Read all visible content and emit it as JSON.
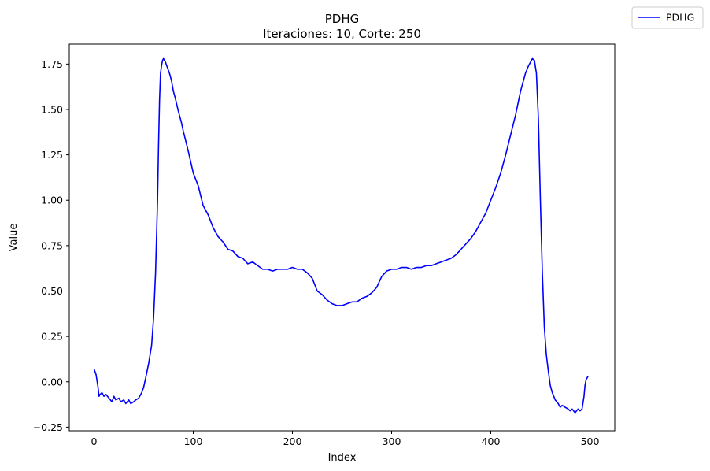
{
  "chart_data": {
    "type": "line",
    "title": "PDHG",
    "subtitle": "Iteraciones: 10, Corte: 250",
    "xlabel": "Index",
    "ylabel": "Value",
    "xlim": [
      -25,
      525
    ],
    "ylim": [
      -0.27,
      1.86
    ],
    "xticks": [
      0,
      100,
      200,
      300,
      400,
      500
    ],
    "yticks": [
      -0.25,
      0.0,
      0.25,
      0.5,
      0.75,
      1.0,
      1.25,
      1.5,
      1.75
    ],
    "xtick_labels": [
      "0",
      "100",
      "200",
      "300",
      "400",
      "500"
    ],
    "ytick_labels": [
      "−0.25",
      "0.00",
      "0.25",
      "0.50",
      "0.75",
      "1.00",
      "1.25",
      "1.50",
      "1.75"
    ],
    "grid": false,
    "legend_position": "upper-right-outside",
    "series": [
      {
        "name": "PDHG",
        "color": "#0000ff",
        "x": [
          0,
          2,
          4,
          5,
          6,
          8,
          10,
          12,
          15,
          18,
          20,
          22,
          25,
          27,
          30,
          32,
          35,
          37,
          40,
          42,
          45,
          48,
          50,
          52,
          55,
          58,
          60,
          62,
          64,
          65,
          66,
          67,
          68,
          69,
          70,
          72,
          74,
          76,
          78,
          80,
          82,
          85,
          88,
          90,
          95,
          100,
          105,
          110,
          115,
          120,
          125,
          130,
          135,
          140,
          145,
          150,
          155,
          160,
          165,
          170,
          175,
          180,
          185,
          190,
          195,
          200,
          205,
          210,
          215,
          220,
          225,
          230,
          235,
          240,
          245,
          250,
          255,
          260,
          265,
          270,
          275,
          280,
          285,
          290,
          295,
          300,
          305,
          310,
          315,
          320,
          325,
          330,
          335,
          340,
          345,
          350,
          355,
          360,
          365,
          370,
          375,
          380,
          385,
          390,
          395,
          400,
          405,
          410,
          415,
          420,
          425,
          430,
          435,
          438,
          440,
          442,
          444,
          446,
          448,
          450,
          452,
          454,
          456,
          458,
          460,
          462,
          465,
          468,
          470,
          472,
          475,
          478,
          480,
          482,
          485,
          488,
          490,
          492,
          494,
          495,
          496,
          497,
          498
        ],
        "y": [
          0.07,
          0.04,
          -0.03,
          -0.08,
          -0.07,
          -0.06,
          -0.08,
          -0.07,
          -0.09,
          -0.11,
          -0.08,
          -0.1,
          -0.09,
          -0.11,
          -0.1,
          -0.12,
          -0.1,
          -0.12,
          -0.11,
          -0.1,
          -0.09,
          -0.06,
          -0.03,
          0.02,
          0.1,
          0.2,
          0.35,
          0.6,
          1.0,
          1.3,
          1.55,
          1.7,
          1.74,
          1.77,
          1.78,
          1.76,
          1.73,
          1.7,
          1.66,
          1.6,
          1.56,
          1.49,
          1.43,
          1.38,
          1.27,
          1.15,
          1.08,
          0.97,
          0.92,
          0.85,
          0.8,
          0.77,
          0.73,
          0.72,
          0.69,
          0.68,
          0.65,
          0.66,
          0.64,
          0.62,
          0.62,
          0.61,
          0.62,
          0.62,
          0.62,
          0.63,
          0.62,
          0.62,
          0.6,
          0.57,
          0.5,
          0.48,
          0.45,
          0.43,
          0.42,
          0.42,
          0.43,
          0.44,
          0.44,
          0.46,
          0.47,
          0.49,
          0.52,
          0.58,
          0.61,
          0.62,
          0.62,
          0.63,
          0.63,
          0.62,
          0.63,
          0.63,
          0.64,
          0.64,
          0.65,
          0.66,
          0.67,
          0.68,
          0.7,
          0.73,
          0.76,
          0.79,
          0.83,
          0.88,
          0.93,
          1.0,
          1.07,
          1.15,
          1.25,
          1.36,
          1.47,
          1.6,
          1.7,
          1.74,
          1.76,
          1.78,
          1.77,
          1.7,
          1.45,
          1.0,
          0.6,
          0.3,
          0.15,
          0.06,
          -0.02,
          -0.06,
          -0.1,
          -0.12,
          -0.14,
          -0.13,
          -0.14,
          -0.15,
          -0.16,
          -0.15,
          -0.17,
          -0.15,
          -0.16,
          -0.15,
          -0.08,
          -0.02,
          0.01,
          0.02,
          0.03
        ]
      }
    ]
  }
}
